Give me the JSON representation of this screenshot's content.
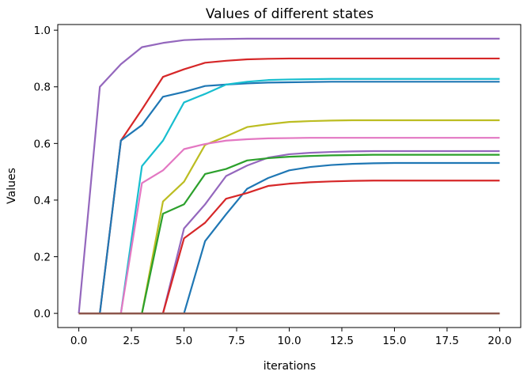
{
  "chart_data": {
    "type": "line",
    "title": "Values of different states",
    "xlabel": "iterations",
    "ylabel": "Values",
    "xlim": [
      -1,
      21
    ],
    "ylim": [
      -0.05,
      1.02
    ],
    "grid": false,
    "x_ticks": [
      0.0,
      2.5,
      5.0,
      7.5,
      10.0,
      12.5,
      15.0,
      17.5,
      20.0
    ],
    "x_tick_labels": [
      "0.0",
      "2.5",
      "5.0",
      "7.5",
      "10.0",
      "12.5",
      "15.0",
      "17.5",
      "20.0"
    ],
    "y_ticks": [
      0.0,
      0.2,
      0.4,
      0.6,
      0.8,
      1.0
    ],
    "y_tick_labels": [
      "0.0",
      "0.2",
      "0.4",
      "0.6",
      "0.8",
      "1.0"
    ],
    "x": [
      0,
      1,
      2,
      3,
      4,
      5,
      6,
      7,
      8,
      9,
      10,
      11,
      12,
      13,
      14,
      15,
      16,
      17,
      18,
      19,
      20
    ],
    "series": [
      {
        "color": "#9467bd",
        "values": [
          0,
          0.8,
          0.88,
          0.94,
          0.955,
          0.965,
          0.968,
          0.969,
          0.97,
          0.97,
          0.97,
          0.97,
          0.97,
          0.97,
          0.97,
          0.97,
          0.97,
          0.97,
          0.97,
          0.97,
          0.97
        ]
      },
      {
        "color": "#d62728",
        "values": [
          0,
          0,
          0.61,
          0.72,
          0.835,
          0.862,
          0.885,
          0.892,
          0.897,
          0.899,
          0.9,
          0.9,
          0.9,
          0.9,
          0.9,
          0.9,
          0.9,
          0.9,
          0.9,
          0.9,
          0.9
        ]
      },
      {
        "color": "#1f77b4",
        "values": [
          0,
          0,
          0.61,
          0.665,
          0.765,
          0.782,
          0.803,
          0.808,
          0.812,
          0.815,
          0.816,
          0.817,
          0.818,
          0.818,
          0.818,
          0.818,
          0.818,
          0.818,
          0.818,
          0.818,
          0.818
        ]
      },
      {
        "color": "#17becf",
        "values": [
          0,
          0,
          0,
          0.52,
          0.61,
          0.745,
          0.775,
          0.808,
          0.818,
          0.824,
          0.826,
          0.827,
          0.828,
          0.828,
          0.828,
          0.828,
          0.828,
          0.828,
          0.828,
          0.828,
          0.828
        ]
      },
      {
        "color": "#bcbd22",
        "values": [
          0,
          0,
          0,
          0,
          0.395,
          0.465,
          0.595,
          0.625,
          0.658,
          0.668,
          0.676,
          0.679,
          0.681,
          0.682,
          0.682,
          0.682,
          0.682,
          0.682,
          0.682,
          0.682,
          0.682
        ]
      },
      {
        "color": "#e377c2",
        "values": [
          0,
          0,
          0,
          0.46,
          0.505,
          0.58,
          0.598,
          0.61,
          0.615,
          0.618,
          0.619,
          0.62,
          0.62,
          0.62,
          0.62,
          0.62,
          0.62,
          0.62,
          0.62,
          0.62,
          0.62
        ]
      },
      {
        "color": "#9467bd",
        "values": [
          0,
          0,
          0,
          0,
          0,
          0.3,
          0.385,
          0.485,
          0.522,
          0.55,
          0.562,
          0.567,
          0.57,
          0.572,
          0.573,
          0.573,
          0.573,
          0.573,
          0.573,
          0.573,
          0.573
        ]
      },
      {
        "color": "#2ca02c",
        "values": [
          0,
          0,
          0,
          0,
          0.352,
          0.385,
          0.492,
          0.51,
          0.54,
          0.548,
          0.553,
          0.556,
          0.558,
          0.559,
          0.56,
          0.56,
          0.56,
          0.56,
          0.56,
          0.56,
          0.56
        ]
      },
      {
        "color": "#1f77b4",
        "values": [
          0,
          0,
          0,
          0,
          0,
          0,
          0.255,
          0.35,
          0.44,
          0.478,
          0.505,
          0.517,
          0.524,
          0.528,
          0.53,
          0.531,
          0.531,
          0.531,
          0.531,
          0.531,
          0.531
        ]
      },
      {
        "color": "#d62728",
        "values": [
          0,
          0,
          0,
          0,
          0,
          0.265,
          0.32,
          0.405,
          0.425,
          0.45,
          0.458,
          0.463,
          0.466,
          0.468,
          0.469,
          0.469,
          0.469,
          0.469,
          0.469,
          0.469,
          0.469
        ]
      },
      {
        "color": "#ff7f0e",
        "values": [
          0,
          0,
          0,
          0,
          0,
          0,
          0,
          0,
          0,
          0,
          0,
          0,
          0,
          0,
          0,
          0,
          0,
          0,
          0,
          0,
          0
        ]
      },
      {
        "color": "#7f7f7f",
        "values": [
          0,
          0,
          0,
          0,
          0,
          0,
          0,
          0,
          0,
          0,
          0,
          0,
          0,
          0,
          0,
          0,
          0,
          0,
          0,
          0,
          0
        ]
      },
      {
        "color": "#8c564b",
        "values": [
          0,
          0,
          0,
          0,
          0,
          0,
          0,
          0,
          0,
          0,
          0,
          0,
          0,
          0,
          0,
          0,
          0,
          0,
          0,
          0,
          0
        ]
      }
    ]
  }
}
